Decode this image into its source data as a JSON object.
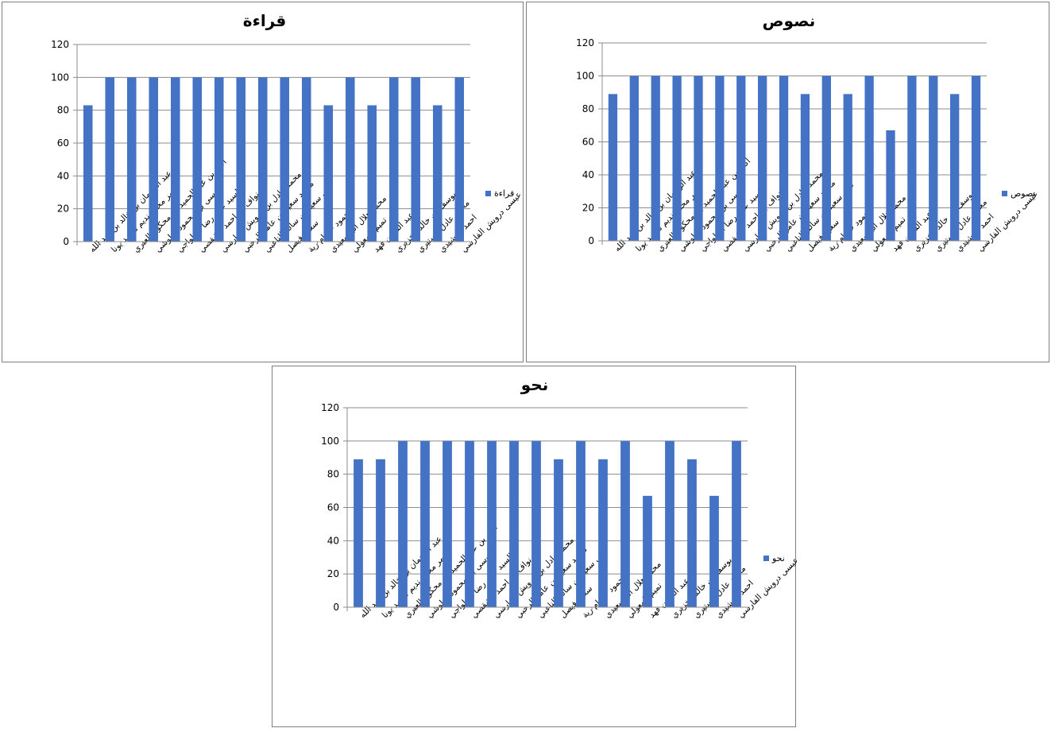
{
  "chart_data": [
    {
      "type": "bar",
      "title": "قراءة",
      "ylim": [
        0,
        120
      ],
      "yticks": [
        0,
        20,
        40,
        60,
        80,
        100,
        120
      ],
      "grid": true,
      "legend_position": "right",
      "categories": [
        "عبد الرحمان بن خالد بن عبد الله",
        "عمر محمد نديم محمد يونا",
        "أكثم بن عبد الحميد بن محكوم العبري",
        "موسى بن محمود البلوشي",
        "السيد علي رضا الحلواجي",
        "نواف بن احمد الشقصي",
        "محمد عادل بن درويش الفارسي",
        "محمد سعيد بن عامر الرحبي",
        "علي سعيد بن سالم الناعبي",
        "سعود فيصل",
        "محمود حسام رية",
        "محمد هلال البوسعيدي",
        "تميم المعولي",
        "عبد الله بن فهد",
        "يوسف بن خالد الخزيري",
        "محمد عادل مستيري",
        "احمد الرشيدي",
        "عيسى درويش الفارسي"
      ],
      "series": [
        {
          "name": "قراءة",
          "color": "#4472C4",
          "values": [
            83,
            100,
            100,
            100,
            100,
            100,
            100,
            100,
            100,
            100,
            100,
            83,
            100,
            83,
            100,
            100,
            83,
            100
          ]
        }
      ]
    },
    {
      "type": "bar",
      "title": "نصوص",
      "ylim": [
        0,
        120
      ],
      "yticks": [
        0,
        20,
        40,
        60,
        80,
        100,
        120
      ],
      "grid": true,
      "legend_position": "right",
      "categories": [
        "عبد الرحمان بن خالد بن عبد الله",
        "عمر محمد نديم محمد يونا",
        "أكثم بن عبد الحميد بن محكوم العبري",
        "موسى بن محمود البلوشي",
        "السيد علي رضا الحلواجي",
        "نواف بن احمد الشقصي",
        "محمد عادل بن درويش الفارسي",
        "محمد سعيد بن عامر الرحبي",
        "علي سعيد بن سالم الناعبي",
        "سعود فيصل",
        "محمود حسام رية",
        "محمد هلال البوسعيدي",
        "تميم المعولي",
        "عبد الله بن فهد",
        "يوسف بن خالد الخزيري",
        "محمد عادل مستيري",
        "احمد الرشيدي",
        "عيسى درويش الفارسي"
      ],
      "series": [
        {
          "name": "نصوص",
          "color": "#4472C4",
          "values": [
            89,
            100,
            100,
            100,
            100,
            100,
            100,
            100,
            100,
            89,
            100,
            89,
            100,
            67,
            100,
            100,
            89,
            100
          ]
        }
      ]
    },
    {
      "type": "bar",
      "title": "نحو",
      "ylim": [
        0,
        120
      ],
      "yticks": [
        0,
        20,
        40,
        60,
        80,
        100,
        120
      ],
      "grid": true,
      "legend_position": "right",
      "categories": [
        "عبد الرحمان بن خالد بن عبد الله",
        "عمر محمد نديم محمد يونا",
        "أكثم بن عبد الحميد بن محكوم العبري",
        "موسى بن محمود البلوشي",
        "السيد علي رضا الحلواجي",
        "نواف بن احمد الشقصي",
        "محمد عادل بن درويش الفارسي",
        "محمد سعيد بن عامر الرحبي",
        "علي سعيد بن سالم الناعبي",
        "سعود فيصل",
        "محمود حسام رية",
        "محمد هلال البوسعيدي",
        "تميم المعولي",
        "عبد الله بن فهد",
        "يوسف بن خالد الخزيري",
        "محمد عادل مستيري",
        "احمد الرشيدي",
        "عيسى درويش الفارسي"
      ],
      "series": [
        {
          "name": "نحو",
          "color": "#4472C4",
          "values": [
            89,
            89,
            100,
            100,
            100,
            100,
            100,
            100,
            100,
            89,
            100,
            89,
            100,
            67,
            100,
            89,
            67,
            100
          ]
        }
      ]
    }
  ]
}
